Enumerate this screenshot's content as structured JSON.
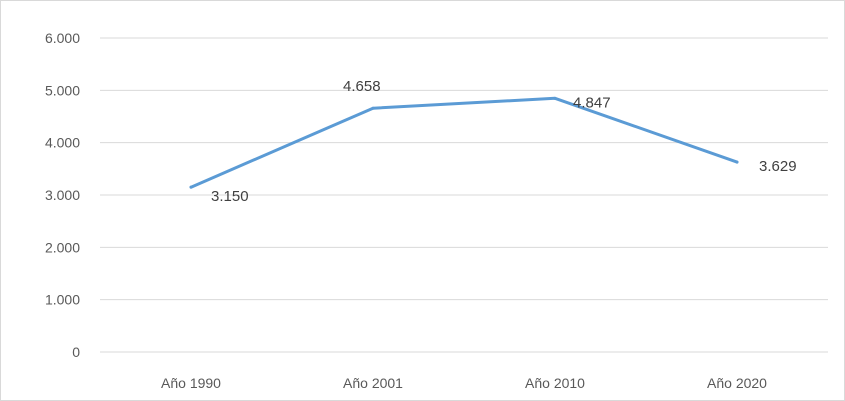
{
  "chart_data": {
    "type": "line",
    "categories": [
      "Año 1990",
      "Año 2001",
      "Año 2010",
      "Año 2020"
    ],
    "series": [
      {
        "values": [
          3150,
          4658,
          4847,
          3629
        ],
        "labels": [
          "3.150",
          "4.658",
          "4.847",
          "3.629"
        ],
        "color": "#5b9bd5"
      }
    ],
    "ylim": [
      0,
      6000
    ],
    "yticks": [
      0,
      1000,
      2000,
      3000,
      4000,
      5000,
      6000
    ],
    "ytick_labels": [
      "0",
      "1.000",
      "2.000",
      "3.000",
      "4.000",
      "5.000",
      "6.000"
    ],
    "grid": true,
    "legend": "none",
    "gridline_color": "#d9d9d9",
    "text_color": "#595959"
  }
}
